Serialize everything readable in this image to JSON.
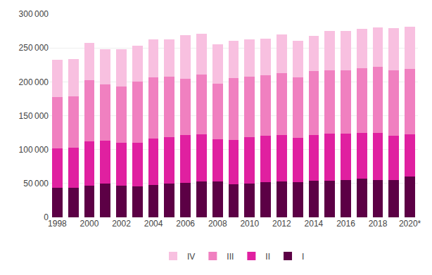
{
  "chart_data": {
    "type": "bar",
    "stacked": true,
    "categories": [
      "1998",
      null,
      "2000",
      null,
      "2002",
      null,
      "2004",
      null,
      "2006",
      null,
      "2008",
      null,
      "2010",
      null,
      "2012",
      null,
      "2014",
      null,
      "2016",
      null,
      "2018",
      null,
      "2020*"
    ],
    "series": [
      {
        "name": "I",
        "color": "#5c0045",
        "values": [
          44000,
          44000,
          47000,
          50000,
          47000,
          46000,
          48000,
          50000,
          51000,
          53000,
          53000,
          49000,
          50000,
          52000,
          53000,
          52000,
          54000,
          54000,
          55000,
          57000,
          55000,
          55000,
          60000
        ]
      },
      {
        "name": "II",
        "color": "#e020a0",
        "values": [
          58000,
          59000,
          65000,
          63000,
          63000,
          64000,
          68000,
          68000,
          70000,
          70000,
          62000,
          65000,
          68000,
          68000,
          68000,
          65000,
          67000,
          70000,
          69000,
          68000,
          70000,
          65000,
          62000
        ]
      },
      {
        "name": "III",
        "color": "#f080c0",
        "values": [
          76000,
          76000,
          90000,
          83000,
          83000,
          90000,
          91000,
          90000,
          84000,
          88000,
          82000,
          92000,
          90000,
          90000,
          92000,
          90000,
          95000,
          93000,
          93000,
          95000,
          97000,
          97000,
          97000
        ]
      },
      {
        "name": "IV",
        "color": "#f8c0e0",
        "values": [
          55000,
          55000,
          55000,
          52000,
          55000,
          53000,
          56000,
          55000,
          64000,
          60000,
          58000,
          55000,
          55000,
          54000,
          57000,
          54000,
          52000,
          58000,
          58000,
          58000,
          58000,
          62000,
          62000
        ]
      }
    ],
    "ylim": [
      0,
      300000
    ],
    "yticks": [
      0,
      {
        "value": 50000,
        "label": "50 000"
      },
      {
        "value": 100000,
        "label": "100 000"
      },
      {
        "value": 150000,
        "label": "150 000"
      },
      {
        "value": 200000,
        "label": "200 000"
      },
      {
        "value": 250000,
        "label": "250 000"
      },
      {
        "value": 300000,
        "label": "300 000"
      }
    ],
    "grid": true,
    "legend": "bottom"
  }
}
